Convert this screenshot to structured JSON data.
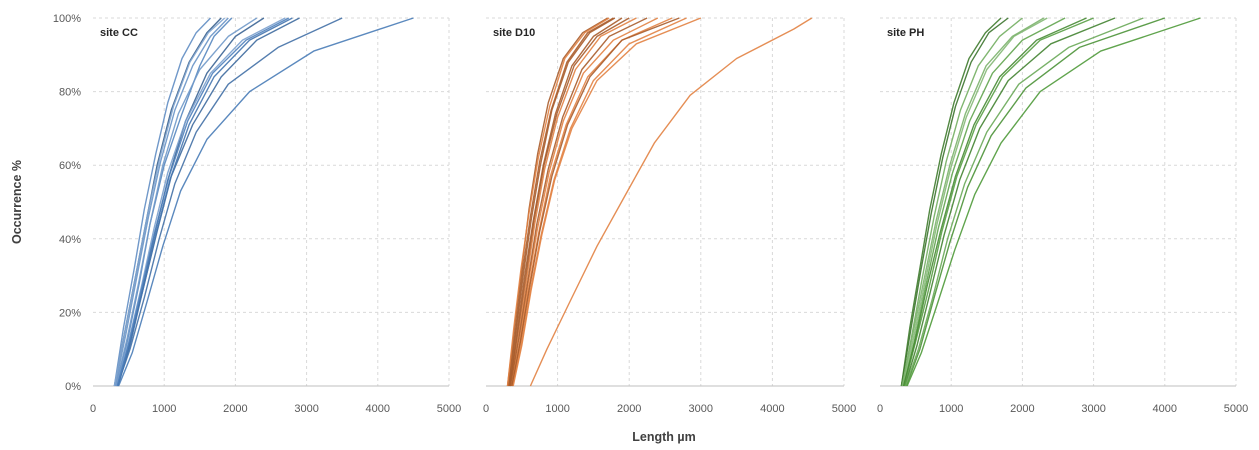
{
  "figure": {
    "ylabel": "Occurrence %",
    "xlabel": "Length µm"
  },
  "chart_data": [
    {
      "type": "line",
      "title": "site CC",
      "color": "#4a7ebb",
      "xlabel": "Length µm",
      "ylabel": "Occurrence %",
      "xlim": [
        0,
        5000
      ],
      "ylim": [
        0,
        100
      ],
      "xticks": [
        "0",
        "1000",
        "2000",
        "3000",
        "4000",
        "5000"
      ],
      "yticks": [
        "0%",
        "20%",
        "40%",
        "60%",
        "80%",
        "100%"
      ],
      "grid": true,
      "legend": "none",
      "series": [
        {
          "x": [
            300,
            450,
            600,
            750,
            900,
            1100,
            1350,
            1600,
            1800
          ],
          "y": [
            0,
            15,
            30,
            45,
            60,
            75,
            88,
            96,
            100
          ]
        },
        {
          "x": [
            320,
            480,
            650,
            800,
            1000,
            1250,
            1500,
            1700,
            1950
          ],
          "y": [
            0,
            12,
            28,
            44,
            60,
            74,
            87,
            95,
            100
          ]
        },
        {
          "x": [
            350,
            500,
            680,
            850,
            1050,
            1300,
            1600,
            2000,
            2400
          ],
          "y": [
            0,
            10,
            25,
            40,
            56,
            72,
            85,
            95,
            100
          ]
        },
        {
          "x": [
            300,
            430,
            580,
            720,
            880,
            1050,
            1250,
            1450,
            1650
          ],
          "y": [
            0,
            16,
            32,
            48,
            63,
            77,
            89,
            96,
            100
          ]
        },
        {
          "x": [
            330,
            500,
            700,
            900,
            1100,
            1400,
            1800,
            2300,
            2900
          ],
          "y": [
            0,
            11,
            26,
            42,
            57,
            71,
            84,
            94,
            100
          ]
        },
        {
          "x": [
            310,
            460,
            620,
            780,
            950,
            1150,
            1400,
            1650,
            1900
          ],
          "y": [
            0,
            14,
            30,
            46,
            61,
            75,
            87,
            95,
            100
          ]
        },
        {
          "x": [
            340,
            520,
            720,
            930,
            1150,
            1450,
            1900,
            2600,
            3500
          ],
          "y": [
            0,
            10,
            24,
            40,
            55,
            69,
            82,
            92,
            100
          ]
        },
        {
          "x": [
            320,
            480,
            640,
            800,
            980,
            1200,
            1500,
            1900,
            2300
          ],
          "y": [
            0,
            13,
            28,
            44,
            60,
            74,
            86,
            95,
            100
          ]
        },
        {
          "x": [
            350,
            520,
            700,
            880,
            1080,
            1350,
            1700,
            2200,
            2800
          ],
          "y": [
            0,
            11,
            26,
            41,
            56,
            71,
            84,
            94,
            100
          ]
        },
        {
          "x": [
            330,
            500,
            680,
            860,
            1050,
            1300,
            1650,
            2100,
            2700
          ],
          "y": [
            0,
            12,
            27,
            43,
            58,
            72,
            85,
            94,
            100
          ]
        },
        {
          "x": [
            360,
            550,
            760,
            980,
            1230,
            1600,
            2200,
            3100,
            4500
          ],
          "y": [
            0,
            9,
            23,
            38,
            53,
            67,
            80,
            91,
            100
          ]
        },
        {
          "x": [
            300,
            450,
            610,
            770,
            940,
            1130,
            1360,
            1620,
            1850
          ],
          "y": [
            0,
            15,
            31,
            47,
            62,
            76,
            88,
            96,
            100
          ]
        },
        {
          "x": [
            340,
            510,
            690,
            870,
            1070,
            1330,
            1680,
            2150,
            2750
          ],
          "y": [
            0,
            12,
            27,
            42,
            57,
            72,
            85,
            94,
            100
          ]
        }
      ]
    },
    {
      "type": "line",
      "title": "site D10",
      "color": "#e07b39",
      "xlabel": "Length µm",
      "ylabel": "Occurrence %",
      "xlim": [
        0,
        5000
      ],
      "ylim": [
        0,
        100
      ],
      "xticks": [
        "0",
        "1000",
        "2000",
        "3000",
        "4000",
        "5000"
      ],
      "yticks": [
        "0%",
        "20%",
        "40%",
        "60%",
        "80%",
        "100%"
      ],
      "grid": true,
      "legend": "none",
      "series": [
        {
          "x": [
            320,
            420,
            520,
            630,
            760,
            920,
            1150,
            1450,
            1800
          ],
          "y": [
            0,
            15,
            30,
            45,
            60,
            75,
            88,
            96,
            100
          ]
        },
        {
          "x": [
            340,
            450,
            560,
            680,
            820,
            1000,
            1250,
            1600,
            2100
          ],
          "y": [
            0,
            13,
            28,
            44,
            59,
            73,
            86,
            95,
            100
          ]
        },
        {
          "x": [
            300,
            400,
            500,
            600,
            720,
            870,
            1080,
            1350,
            1700
          ],
          "y": [
            0,
            16,
            32,
            48,
            63,
            77,
            89,
            96,
            100
          ]
        },
        {
          "x": [
            360,
            480,
            600,
            740,
            900,
            1120,
            1420,
            1900,
            2600
          ],
          "y": [
            0,
            12,
            27,
            42,
            57,
            71,
            84,
            94,
            100
          ]
        },
        {
          "x": [
            330,
            440,
            550,
            670,
            810,
            990,
            1230,
            1550,
            2000
          ],
          "y": [
            0,
            14,
            29,
            45,
            60,
            74,
            87,
            95,
            100
          ]
        },
        {
          "x": [
            380,
            500,
            630,
            780,
            960,
            1200,
            1550,
            2100,
            3000
          ],
          "y": [
            0,
            11,
            26,
            41,
            56,
            70,
            83,
            93,
            100
          ]
        },
        {
          "x": [
            310,
            410,
            510,
            620,
            750,
            910,
            1130,
            1420,
            1780
          ],
          "y": [
            0,
            15,
            31,
            46,
            61,
            75,
            88,
            96,
            100
          ]
        },
        {
          "x": [
            350,
            470,
            590,
            720,
            880,
            1080,
            1360,
            1780,
            2400
          ],
          "y": [
            0,
            12,
            28,
            43,
            58,
            72,
            85,
            94,
            100
          ]
        },
        {
          "x": [
            330,
            430,
            540,
            660,
            800,
            970,
            1200,
            1500,
            1900
          ],
          "y": [
            0,
            14,
            30,
            45,
            60,
            74,
            87,
            95,
            100
          ]
        },
        {
          "x": [
            370,
            490,
            620,
            770,
            950,
            1180,
            1500,
            2000,
            2800
          ],
          "y": [
            0,
            11,
            26,
            41,
            56,
            70,
            83,
            93,
            100
          ]
        },
        {
          "x": [
            340,
            460,
            580,
            710,
            870,
            1070,
            1340,
            1720,
            2250
          ],
          "y": [
            0,
            13,
            28,
            44,
            59,
            73,
            86,
            95,
            100
          ]
        },
        {
          "x": [
            300,
            390,
            490,
            600,
            730,
            890,
            1100,
            1380,
            1720
          ],
          "y": [
            0,
            16,
            32,
            47,
            62,
            76,
            89,
            96,
            100
          ]
        },
        {
          "x": [
            360,
            480,
            610,
            750,
            920,
            1140,
            1450,
            1900,
            2700
          ],
          "y": [
            0,
            12,
            27,
            42,
            57,
            71,
            84,
            94,
            100
          ]
        },
        {
          "x": [
            620,
            850,
            1150,
            1550,
            1950,
            2350,
            2850,
            3500,
            4300,
            4550
          ],
          "y": [
            0,
            10,
            22,
            38,
            52,
            66,
            79,
            89,
            97,
            100
          ]
        }
      ]
    },
    {
      "type": "line",
      "title": "site PH",
      "color": "#4f9a3a",
      "xlabel": "Length µm",
      "ylabel": "Occurrence %",
      "xlim": [
        0,
        5000
      ],
      "ylim": [
        0,
        100
      ],
      "xticks": [
        "0",
        "1000",
        "2000",
        "3000",
        "4000",
        "5000"
      ],
      "yticks": [
        "0%",
        "20%",
        "40%",
        "60%",
        "80%",
        "100%"
      ],
      "grid": true,
      "legend": "none",
      "series": [
        {
          "x": [
            300,
            430,
            570,
            720,
            880,
            1060,
            1280,
            1530,
            1800
          ],
          "y": [
            0,
            15,
            31,
            47,
            62,
            76,
            88,
            96,
            100
          ]
        },
        {
          "x": [
            330,
            480,
            640,
            820,
            1020,
            1260,
            1580,
            2000,
            2600
          ],
          "y": [
            0,
            12,
            27,
            43,
            58,
            72,
            85,
            94,
            100
          ]
        },
        {
          "x": [
            350,
            520,
            700,
            900,
            1120,
            1400,
            1800,
            2400,
            3300
          ],
          "y": [
            0,
            11,
            25,
            41,
            56,
            70,
            83,
            93,
            100
          ]
        },
        {
          "x": [
            310,
            450,
            600,
            760,
            930,
            1130,
            1380,
            1680,
            2000
          ],
          "y": [
            0,
            14,
            30,
            46,
            61,
            75,
            87,
            95,
            100
          ]
        },
        {
          "x": [
            370,
            560,
            760,
            980,
            1230,
            1560,
            2050,
            2800,
            4000
          ],
          "y": [
            0,
            10,
            24,
            39,
            54,
            68,
            81,
            92,
            100
          ]
        },
        {
          "x": [
            320,
            470,
            630,
            800,
            990,
            1210,
            1500,
            1880,
            2350
          ],
          "y": [
            0,
            13,
            28,
            44,
            59,
            73,
            86,
            95,
            100
          ]
        },
        {
          "x": [
            340,
            500,
            680,
            870,
            1080,
            1350,
            1720,
            2250,
            3000
          ],
          "y": [
            0,
            12,
            26,
            42,
            57,
            71,
            84,
            94,
            100
          ]
        },
        {
          "x": [
            300,
            420,
            560,
            700,
            860,
            1040,
            1250,
            1480,
            1700
          ],
          "y": [
            0,
            16,
            32,
            48,
            63,
            77,
            89,
            96,
            100
          ]
        },
        {
          "x": [
            360,
            540,
            740,
            950,
            1190,
            1500,
            1950,
            2650,
            3700
          ],
          "y": [
            0,
            10,
            24,
            40,
            55,
            69,
            82,
            92,
            100
          ]
        },
        {
          "x": [
            330,
            490,
            660,
            850,
            1060,
            1320,
            1680,
            2200,
            2900
          ],
          "y": [
            0,
            12,
            27,
            42,
            57,
            71,
            84,
            94,
            100
          ]
        },
        {
          "x": [
            310,
            460,
            620,
            790,
            980,
            1200,
            1490,
            1860,
            2300
          ],
          "y": [
            0,
            14,
            29,
            45,
            60,
            74,
            87,
            95,
            100
          ]
        },
        {
          "x": [
            380,
            580,
            800,
            1050,
            1330,
            1700,
            2250,
            3100,
            4500
          ],
          "y": [
            0,
            9,
            22,
            37,
            52,
            66,
            80,
            91,
            100
          ]
        }
      ]
    }
  ]
}
